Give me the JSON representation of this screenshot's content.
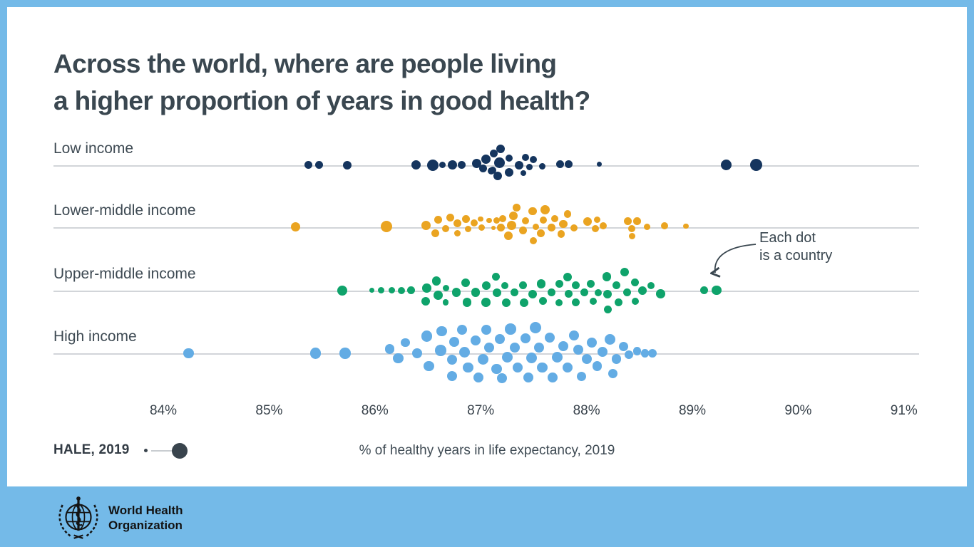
{
  "title": {
    "line1": "Across the world, where are people living",
    "line2": "a higher proportion of years in good health?"
  },
  "annotation": {
    "line1": "Each dot",
    "line2": "is a country"
  },
  "size_legend": {
    "label": "HALE, 2019"
  },
  "axis_label": "% of healthy years in life expectancy, 2019",
  "footer": {
    "org_line1": "World Health",
    "org_line2": "Organization"
  },
  "colors": {
    "frame_blue": "#74BAE8",
    "card_white": "#FFFFFF",
    "row_line": "#D2D5D9",
    "text_dark": "#3A4750",
    "legend_dot": "#39444D"
  },
  "chart_data": {
    "type": "scatter",
    "subtype": "beeswarm",
    "title": "Across the world, where are people living a higher proportion of years in good health?",
    "xlabel": "% of healthy years in life expectancy, 2019",
    "x_ticks": [
      "84%",
      "85%",
      "86%",
      "87%",
      "88%",
      "89%",
      "90%",
      "91%"
    ],
    "x_tick_values": [
      84,
      85,
      86,
      87,
      88,
      89,
      90,
      91
    ],
    "xlim": [
      83.6,
      91.3
    ],
    "grid": false,
    "legend_note": "Each dot is a country; dot area scales with HALE, 2019",
    "groups": [
      {
        "label": "Low income",
        "color": "#15355E",
        "dots": [
          [
            85.37,
            0,
            5.5
          ],
          [
            85.47,
            0,
            5.5
          ],
          [
            85.74,
            0,
            6
          ],
          [
            86.39,
            0,
            6.5
          ],
          [
            86.55,
            0,
            8
          ],
          [
            86.64,
            0,
            4.5
          ],
          [
            86.73,
            0,
            6.5
          ],
          [
            86.82,
            0,
            5.5
          ],
          [
            86.96,
            -2,
            6.5
          ],
          [
            87.02,
            5,
            5.5
          ],
          [
            87.05,
            -8,
            6.5
          ],
          [
            87.1,
            8,
            5
          ],
          [
            87.12,
            -16,
            5.5
          ],
          [
            87.19,
            -23,
            6
          ],
          [
            87.18,
            -3,
            7.5
          ],
          [
            87.16,
            15,
            6
          ],
          [
            87.11,
            7,
            5
          ],
          [
            87.27,
            -10,
            5
          ],
          [
            87.27,
            10,
            6
          ],
          [
            87.36,
            0,
            6
          ],
          [
            87.42,
            -11,
            5
          ],
          [
            87.4,
            11,
            4
          ],
          [
            87.5,
            -8,
            5
          ],
          [
            87.46,
            3,
            4.5
          ],
          [
            87.58,
            2,
            4.5
          ],
          [
            87.75,
            -1,
            5.5
          ],
          [
            87.83,
            -1,
            5.5
          ],
          [
            88.12,
            -1,
            3.5
          ],
          [
            89.32,
            0,
            7.5
          ],
          [
            89.6,
            0,
            8.5
          ]
        ]
      },
      {
        "label": "Lower-middle income",
        "color": "#EAA421",
        "dots": [
          [
            85.25,
            0,
            6.5
          ],
          [
            86.11,
            -1,
            8
          ],
          [
            86.48,
            -2,
            6.5
          ],
          [
            86.57,
            9,
            5.7
          ],
          [
            86.6,
            -10,
            5.4
          ],
          [
            86.67,
            2,
            5
          ],
          [
            86.71,
            -13,
            5.7
          ],
          [
            86.78,
            9,
            4.6
          ],
          [
            86.78,
            -5,
            5.7
          ],
          [
            86.86,
            -11,
            5.7
          ],
          [
            86.88,
            3,
            4.6
          ],
          [
            86.94,
            -6,
            5
          ],
          [
            87.0,
            -11,
            3.8
          ],
          [
            87.01,
            1,
            4.6
          ],
          [
            87.08,
            -9,
            3.8
          ],
          [
            87.12,
            1,
            3
          ],
          [
            87.15,
            -9,
            4.6
          ],
          [
            87.19,
            1,
            5.4
          ],
          [
            87.21,
            -12,
            5
          ],
          [
            87.26,
            12,
            6
          ],
          [
            87.29,
            -2,
            6.5
          ],
          [
            87.31,
            -16,
            6
          ],
          [
            87.34,
            -27,
            5.4
          ],
          [
            87.4,
            5,
            5.7
          ],
          [
            87.42,
            -9,
            5
          ],
          [
            87.49,
            -22,
            5.7
          ],
          [
            87.5,
            19,
            5
          ],
          [
            87.52,
            0,
            4.6
          ],
          [
            87.57,
            9,
            5.4
          ],
          [
            87.59,
            -10,
            5
          ],
          [
            87.61,
            -24,
            6.5
          ],
          [
            87.67,
            1,
            5.4
          ],
          [
            87.7,
            -12,
            5
          ],
          [
            87.76,
            10,
            5.4
          ],
          [
            87.78,
            -4,
            5.7
          ],
          [
            87.82,
            -18,
            5.4
          ],
          [
            87.88,
            1,
            5
          ],
          [
            88.01,
            -8,
            6
          ],
          [
            88.08,
            2,
            5
          ],
          [
            88.1,
            -10,
            4.6
          ],
          [
            88.16,
            -2,
            5
          ],
          [
            88.39,
            -8,
            5.7
          ],
          [
            88.43,
            2,
            5
          ],
          [
            88.43,
            13,
            4.6
          ],
          [
            88.48,
            -8,
            5.4
          ],
          [
            88.57,
            0,
            4.6
          ],
          [
            88.74,
            -2,
            5
          ],
          [
            88.94,
            -1,
            3.8
          ]
        ]
      },
      {
        "label": "Upper-middle income",
        "color": "#0FA36B",
        "dots": [
          [
            85.69,
            0,
            7
          ],
          [
            85.97,
            0,
            3.6
          ],
          [
            86.06,
            0,
            4.7
          ],
          [
            86.16,
            0,
            4.7
          ],
          [
            86.25,
            0,
            5
          ],
          [
            86.34,
            0,
            5.5
          ],
          [
            86.48,
            15,
            6
          ],
          [
            86.49,
            -3,
            6.3
          ],
          [
            86.58,
            -13,
            6.3
          ],
          [
            86.6,
            7,
            6.7
          ],
          [
            86.67,
            -3,
            4.7
          ],
          [
            86.67,
            17,
            4.3
          ],
          [
            86.77,
            3,
            6.3
          ],
          [
            86.86,
            -11,
            6
          ],
          [
            86.87,
            17,
            6.3
          ],
          [
            86.95,
            3,
            6.3
          ],
          [
            87.05,
            -7,
            6
          ],
          [
            87.05,
            17,
            6.3
          ],
          [
            87.14,
            -19,
            5.5
          ],
          [
            87.15,
            3,
            6
          ],
          [
            87.23,
            -7,
            5
          ],
          [
            87.24,
            17,
            6
          ],
          [
            87.32,
            3,
            5.5
          ],
          [
            87.4,
            -7,
            5.5
          ],
          [
            87.41,
            17,
            6
          ],
          [
            87.49,
            5,
            6
          ],
          [
            87.57,
            -9,
            6.3
          ],
          [
            87.59,
            15,
            5.5
          ],
          [
            87.67,
            3,
            5.5
          ],
          [
            87.74,
            -9,
            5.5
          ],
          [
            87.74,
            17,
            5
          ],
          [
            87.82,
            -19,
            6
          ],
          [
            87.83,
            5,
            5.5
          ],
          [
            87.9,
            -7,
            5.5
          ],
          [
            87.9,
            17,
            5.5
          ],
          [
            87.98,
            3,
            5.5
          ],
          [
            88.04,
            -9,
            5.5
          ],
          [
            88.06,
            15,
            5
          ],
          [
            88.11,
            3,
            5
          ],
          [
            88.19,
            -19,
            6.3
          ],
          [
            88.2,
            5,
            6
          ],
          [
            88.2,
            27,
            5.5
          ],
          [
            88.28,
            -7,
            5.5
          ],
          [
            88.3,
            17,
            5.5
          ],
          [
            88.36,
            -26,
            6
          ],
          [
            88.38,
            3,
            5.5
          ],
          [
            88.46,
            -11,
            5.5
          ],
          [
            88.46,
            15,
            5
          ],
          [
            88.53,
            0,
            6
          ],
          [
            88.61,
            -7,
            5
          ],
          [
            88.7,
            5,
            6.3
          ],
          [
            89.11,
            0,
            5.7
          ],
          [
            89.23,
            0,
            6.7
          ]
        ]
      },
      {
        "label": "High income",
        "color": "#63ACE4",
        "dots": [
          [
            84.24,
            0,
            7.3
          ],
          [
            85.44,
            0,
            7.8
          ],
          [
            85.72,
            0,
            7.8
          ],
          [
            86.14,
            -6,
            6.9
          ],
          [
            86.22,
            7,
            7.3
          ],
          [
            86.29,
            -15,
            6.4
          ],
          [
            86.4,
            0,
            7.3
          ],
          [
            86.49,
            -24,
            7.8
          ],
          [
            86.51,
            18,
            7.3
          ],
          [
            86.62,
            -4,
            7.8
          ],
          [
            86.63,
            -31,
            7.3
          ],
          [
            86.73,
            32,
            7.3
          ],
          [
            86.73,
            9,
            7.3
          ],
          [
            86.75,
            -16,
            6.9
          ],
          [
            86.82,
            -33,
            7
          ],
          [
            86.85,
            -2,
            7.5
          ],
          [
            86.88,
            20,
            7.3
          ],
          [
            86.95,
            -18,
            7
          ],
          [
            86.98,
            34,
            7
          ],
          [
            87.02,
            8,
            7.5
          ],
          [
            87.05,
            -33,
            7
          ],
          [
            87.08,
            -8,
            7
          ],
          [
            87.15,
            22,
            7.3
          ],
          [
            87.18,
            -20,
            7
          ],
          [
            87.2,
            35,
            7
          ],
          [
            87.25,
            5,
            7.5
          ],
          [
            87.28,
            -34,
            7.8
          ],
          [
            87.32,
            -8,
            7
          ],
          [
            87.35,
            20,
            7.3
          ],
          [
            87.42,
            -21,
            7
          ],
          [
            87.45,
            34,
            7
          ],
          [
            87.48,
            6,
            7.5
          ],
          [
            87.52,
            -36,
            8
          ],
          [
            87.55,
            -8,
            7
          ],
          [
            87.58,
            20,
            7.3
          ],
          [
            87.65,
            -22,
            7
          ],
          [
            87.68,
            34,
            6.9
          ],
          [
            87.72,
            5,
            7.5
          ],
          [
            87.78,
            -10,
            7
          ],
          [
            87.82,
            20,
            7
          ],
          [
            87.88,
            -25,
            7.3
          ],
          [
            87.92,
            -5,
            7
          ],
          [
            87.95,
            32,
            6.5
          ],
          [
            88.0,
            8,
            7
          ],
          [
            88.05,
            -15,
            7.3
          ],
          [
            88.1,
            18,
            6.7
          ],
          [
            88.15,
            -2,
            7
          ],
          [
            88.22,
            -20,
            7.5
          ],
          [
            88.25,
            28,
            6.5
          ],
          [
            88.28,
            8,
            6.7
          ],
          [
            88.35,
            -10,
            6.5
          ],
          [
            88.4,
            2,
            6
          ],
          [
            88.48,
            -3,
            5.7
          ],
          [
            88.55,
            0,
            5.7
          ],
          [
            88.62,
            0,
            6
          ]
        ]
      }
    ]
  }
}
